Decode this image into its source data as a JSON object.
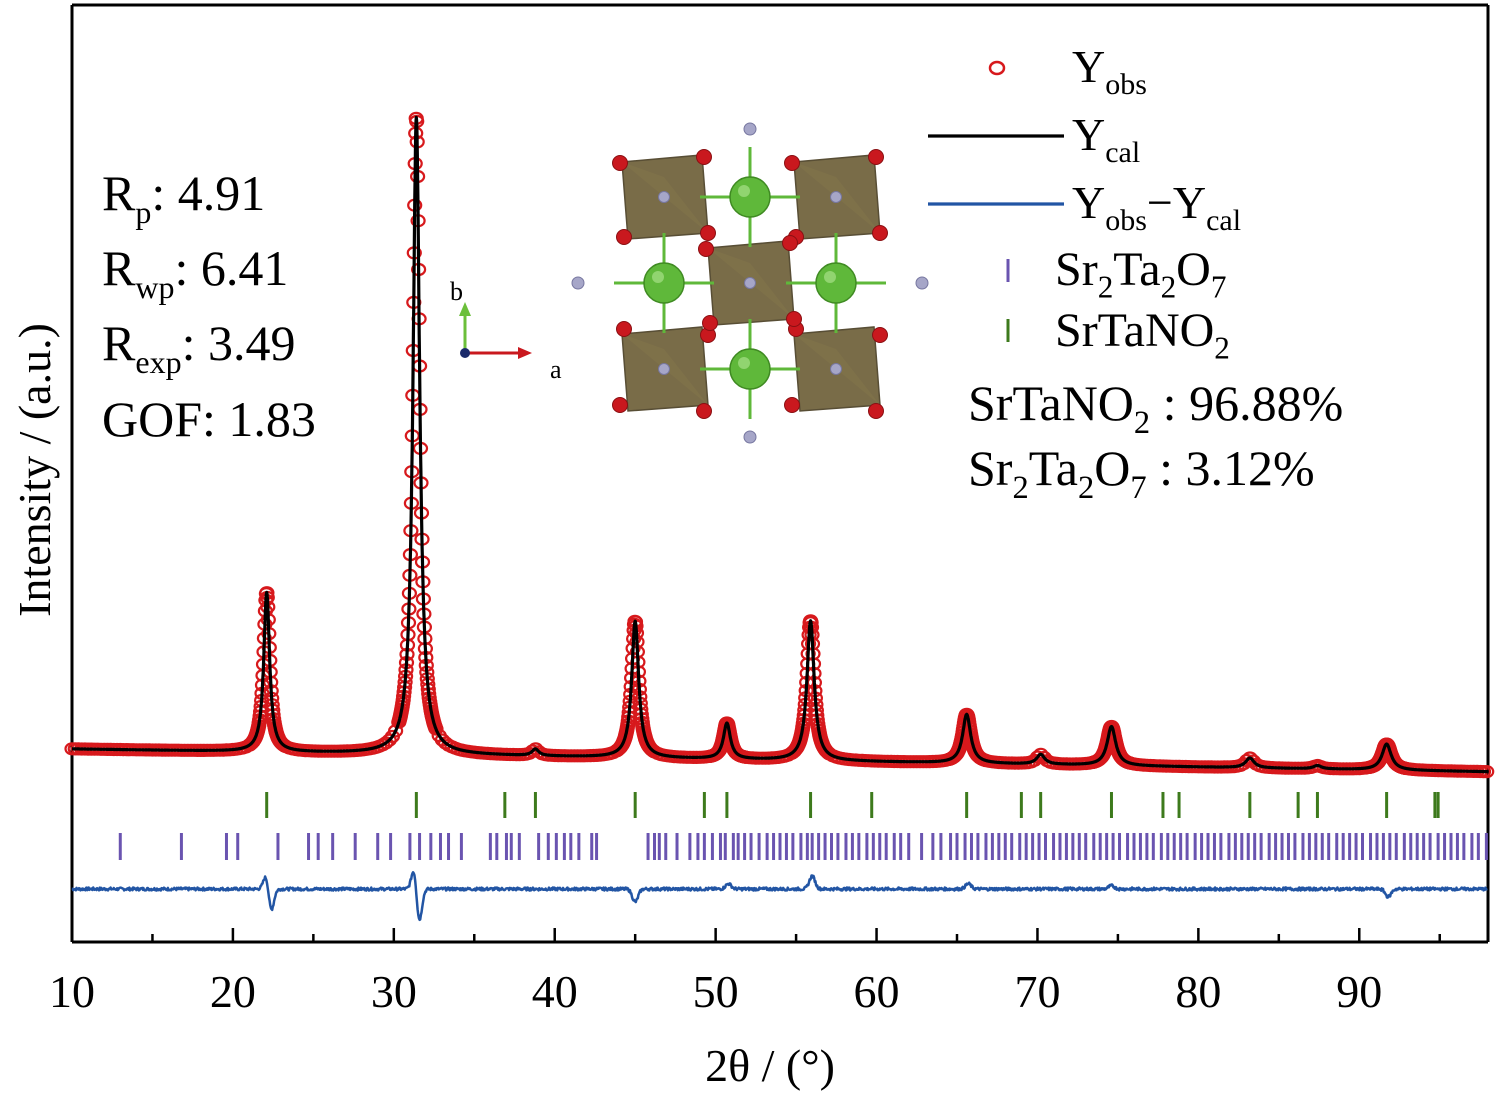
{
  "chart_data": {
    "type": "line",
    "xlabel": "2θ / (°)",
    "ylabel": "Intensity / (a.u.)",
    "xlim": [
      10,
      98
    ],
    "x_major_ticks": [
      10,
      20,
      30,
      40,
      50,
      60,
      70,
      80,
      90
    ],
    "x_tick_labels": [
      "10",
      "20",
      "30",
      "40",
      "50",
      "60",
      "70",
      "80",
      "90"
    ],
    "y_ticks_shown": false,
    "y_range_relative": [
      -0.15,
      1.0
    ],
    "series": [
      {
        "name": "Yobs",
        "display": {
          "main": "Y",
          "sub": "obs"
        },
        "style": "open-circle",
        "color": "#d7191c"
      },
      {
        "name": "Ycal",
        "display": {
          "main": "Y",
          "sub": "cal"
        },
        "style": "line",
        "color": "#000000"
      },
      {
        "name": "Yobs−Ycal",
        "display": {
          "main1": "Y",
          "sub1": "obs",
          "op": "−",
          "main2": "Y",
          "sub2": "cal"
        },
        "style": "line",
        "color": "#2255a4"
      },
      {
        "name": "Sr2Ta2O7",
        "display": {
          "parts": [
            "Sr",
            "2",
            "Ta",
            "2",
            "O",
            "7"
          ]
        },
        "style": "tick-marks",
        "color": "#6a54b0"
      },
      {
        "name": "SrTaNO2",
        "display": {
          "parts": [
            "SrTaNO",
            "2"
          ]
        },
        "style": "tick-marks",
        "color": "#3d7a1c"
      }
    ],
    "background_relative": {
      "x": [
        10,
        98
      ],
      "start": 0.0,
      "end": -0.035
    },
    "peaks_relative_height": [
      {
        "x": 22.1,
        "height": 0.245,
        "width": 0.22
      },
      {
        "x": 31.4,
        "height": 0.98,
        "width": 0.25
      },
      {
        "x": 38.8,
        "height": 0.01,
        "width": 0.25
      },
      {
        "x": 45.0,
        "height": 0.21,
        "width": 0.26
      },
      {
        "x": 50.7,
        "height": 0.055,
        "width": 0.26
      },
      {
        "x": 55.9,
        "height": 0.215,
        "width": 0.27
      },
      {
        "x": 65.6,
        "height": 0.075,
        "width": 0.3
      },
      {
        "x": 70.2,
        "height": 0.015,
        "width": 0.3
      },
      {
        "x": 74.6,
        "height": 0.06,
        "width": 0.32
      },
      {
        "x": 83.2,
        "height": 0.015,
        "width": 0.32
      },
      {
        "x": 87.4,
        "height": 0.005,
        "width": 0.3
      },
      {
        "x": 91.7,
        "height": 0.04,
        "width": 0.34
      }
    ],
    "reflections": {
      "SrTaNO2": [
        22.1,
        31.4,
        36.9,
        38.8,
        45.0,
        49.3,
        50.7,
        55.9,
        59.7,
        65.6,
        69.0,
        70.2,
        74.6,
        77.8,
        78.8,
        83.2,
        86.2,
        87.4,
        91.7,
        94.7,
        94.9
      ],
      "Sr2Ta2O7": [
        13.0,
        16.8,
        19.6,
        20.3,
        22.8,
        24.7,
        25.3,
        26.2,
        27.6,
        29.0,
        29.8,
        31.0,
        31.6,
        32.3,
        32.9,
        33.4,
        34.2,
        36.0,
        36.4,
        37.0,
        37.3,
        37.8,
        39.0,
        39.6,
        40.1,
        40.6,
        41.0,
        41.5,
        42.3,
        42.6,
        45.8,
        46.2,
        46.5,
        46.9,
        47.6,
        48.4,
        48.9,
        49.3,
        49.8,
        50.3,
        50.6,
        51.1,
        51.4,
        51.8,
        52.2,
        52.7,
        53.2,
        53.6,
        54.0,
        54.4,
        54.8,
        55.3,
        55.7,
        56.0,
        56.4,
        56.8,
        57.2,
        57.6,
        58.1,
        58.5,
        58.9,
        59.4,
        59.8,
        60.2,
        60.6,
        61.1,
        61.5,
        62.0,
        62.8,
        63.5,
        64.0,
        64.6,
        65.0,
        65.5,
        65.9,
        66.3,
        66.8,
        67.2,
        67.6,
        68.0,
        68.4,
        68.9,
        69.3,
        69.7,
        70.1,
        70.5,
        71.0,
        71.4,
        71.8,
        72.2,
        72.6,
        73.0,
        73.5,
        73.9,
        74.3,
        74.7,
        75.1,
        75.6,
        76.0,
        76.4,
        76.8,
        77.2,
        77.7,
        78.1,
        78.5,
        78.9,
        79.3,
        79.8,
        80.2,
        80.6,
        81.0,
        81.4,
        81.9,
        82.3,
        82.7,
        83.1,
        83.5,
        83.9,
        84.4,
        84.8,
        85.2,
        85.6,
        86.0,
        86.5,
        86.9,
        87.3,
        87.7,
        88.1,
        88.6,
        89.0,
        89.4,
        89.8,
        90.2,
        90.7,
        91.1,
        91.5,
        91.9,
        92.3,
        92.8,
        93.2,
        93.6,
        94.0,
        94.4,
        94.9,
        95.3,
        95.7,
        96.1,
        96.5,
        97.0,
        97.4,
        97.9
      ]
    },
    "difference_features_relative": [
      {
        "x": 22.1,
        "amp": 0.03,
        "shape": "up-down"
      },
      {
        "x": 31.3,
        "amp": 0.045,
        "shape": "up-down"
      },
      {
        "x": 45.0,
        "amp": -0.02,
        "shape": "down"
      },
      {
        "x": 50.8,
        "amp": 0.008,
        "shape": "up"
      },
      {
        "x": 56.0,
        "amp": 0.02,
        "shape": "up"
      },
      {
        "x": 65.7,
        "amp": 0.008,
        "shape": "up"
      },
      {
        "x": 74.6,
        "amp": 0.005,
        "shape": "up"
      },
      {
        "x": 91.8,
        "amp": -0.012,
        "shape": "down"
      }
    ],
    "refinement_stats": [
      {
        "label": "R",
        "sub": "p",
        "value": ": 4.91"
      },
      {
        "label": "R",
        "sub": "wp",
        "value": ": 6.41"
      },
      {
        "label": "R",
        "sub": "exp",
        "value": ": 3.49"
      },
      {
        "label": "GOF",
        "sub": "",
        "value": ": 1.83"
      }
    ],
    "phase_fractions": [
      {
        "parts": [
          "SrTaNO",
          "2"
        ],
        "value": " : 96.88%"
      },
      {
        "parts": [
          "Sr",
          "2",
          "Ta",
          "2",
          "O",
          "7"
        ],
        "value": " : 3.12%"
      }
    ],
    "inset": {
      "axis_labels": {
        "b": "b",
        "a": "a"
      },
      "colors": {
        "octahedron": "#6e6039",
        "oxygen": "#c9181e",
        "nitrogen": "#a6a6c8",
        "strontium": "#5fb83a",
        "axis_b": "#6bbf3a",
        "axis_a": "#c9181e"
      }
    }
  }
}
